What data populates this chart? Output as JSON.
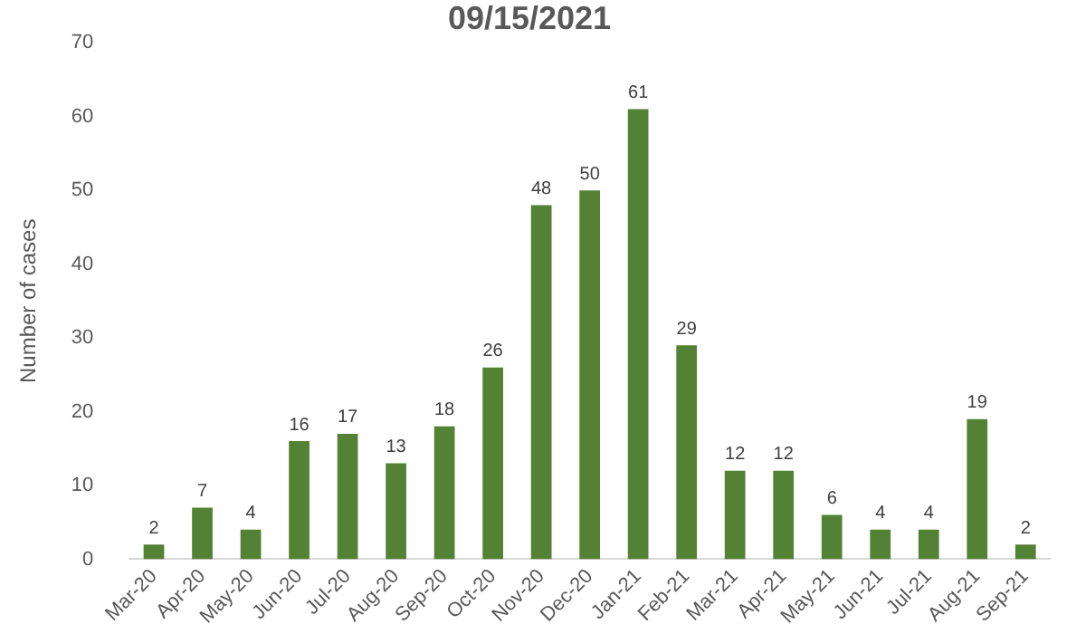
{
  "chart_data": {
    "type": "bar",
    "title": "09/15/2021",
    "ylabel": "Number of cases",
    "categories": [
      "Mar-20",
      "Apr-20",
      "May-20",
      "Jun-20",
      "Jul-20",
      "Aug-20",
      "Sep-20",
      "Oct-20",
      "Nov-20",
      "Dec-20",
      "Jan-21",
      "Feb-21",
      "Mar-21",
      "Apr-21",
      "May-21",
      "Jun-21",
      "Jul-21",
      "Aug-21",
      "Sep-21"
    ],
    "values": [
      2,
      7,
      4,
      16,
      17,
      13,
      18,
      26,
      48,
      50,
      61,
      29,
      12,
      12,
      6,
      4,
      4,
      19,
      2
    ],
    "color": "#548235",
    "ylim": [
      0,
      70
    ],
    "yticks": [
      0,
      10,
      20,
      30,
      40,
      50,
      60,
      70
    ],
    "grid": false,
    "data_labels": true
  }
}
